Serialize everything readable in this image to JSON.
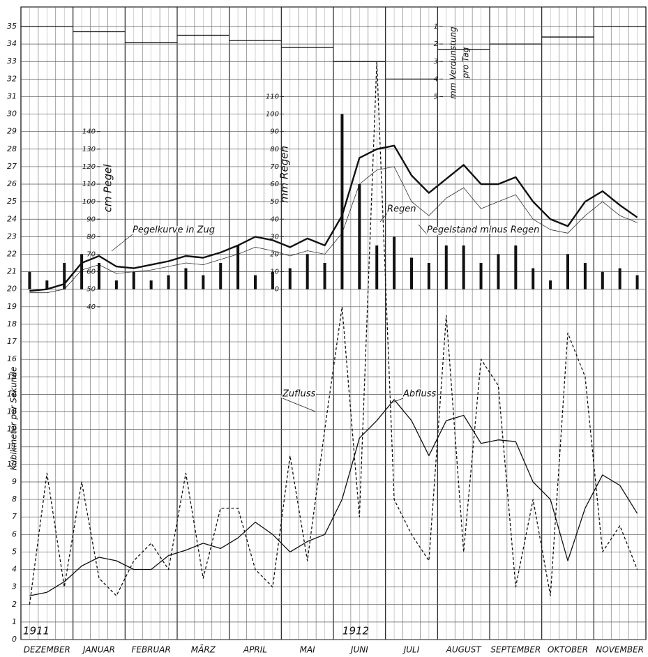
{
  "chart_data": {
    "type": "line",
    "y_label": "Kubikmeter per Sekunde",
    "y2_label": "cm Pegel",
    "y3_label": "mm Regen",
    "y4_label": [
      "mm Verdunstung",
      "pro Tag"
    ],
    "year_labels": [
      "1911",
      "1912"
    ],
    "categories": [
      null,
      "DEZEMBER",
      null,
      null,
      "JANUAR",
      null,
      null,
      "FEBRUAR",
      null,
      null,
      "MÄRZ",
      null,
      null,
      "APRIL",
      null,
      null,
      "MAI",
      null,
      null,
      "JUNI",
      null,
      null,
      "JULI",
      null,
      null,
      "AUGUST",
      null,
      null,
      "SEPTEMBER",
      null,
      null,
      "OKTOBER",
      null,
      null,
      "NOVEMBER",
      null
    ],
    "ylim": [
      0,
      35
    ],
    "yticks": [
      0,
      1,
      2,
      3,
      4,
      5,
      6,
      7,
      8,
      9,
      10,
      11,
      12,
      13,
      14,
      15,
      16,
      17,
      18,
      19,
      20,
      21,
      22,
      23,
      24,
      25,
      26,
      27,
      28,
      29,
      30,
      31,
      32,
      33,
      34,
      35
    ],
    "y2lim": [
      -150,
      200
    ],
    "y2ticks": [
      40,
      50,
      60,
      70,
      80,
      90,
      100,
      110,
      120,
      130,
      140
    ],
    "y3lim": [
      -200,
      150
    ],
    "y3ticks": [
      0,
      10,
      20,
      30,
      40,
      50,
      60,
      70,
      80,
      90,
      100,
      110
    ],
    "y4lim": [
      36,
      1
    ],
    "y4ticks": [
      1,
      2,
      3,
      4,
      5
    ],
    "grid": true,
    "series": [
      {
        "name": "Zufluss",
        "color": "#111111",
        "style": "dashed",
        "values": [
          2.0,
          9.5,
          3.0,
          9.0,
          3.5,
          2.5,
          4.5,
          5.5,
          4.0,
          9.5,
          3.5,
          7.5,
          7.5,
          4.0,
          3.0,
          10.5,
          4.5,
          12.0,
          19.0,
          7.0,
          33.0,
          8.0,
          6.0,
          4.5,
          18.5,
          5.0,
          16.0,
          14.5,
          3.0,
          8.0,
          2.5,
          17.5,
          15.0,
          5.0,
          6.5,
          4.0
        ]
      },
      {
        "name": "Abfluss",
        "color": "#111111",
        "style": "solid",
        "values": [
          2.5,
          2.7,
          3.3,
          4.2,
          4.7,
          4.5,
          4.0,
          4.0,
          4.8,
          5.1,
          5.5,
          5.2,
          5.8,
          6.7,
          6.0,
          5.0,
          5.6,
          6.0,
          8.0,
          11.5,
          12.5,
          13.7,
          12.5,
          10.5,
          12.5,
          12.8,
          11.2,
          11.4,
          11.3,
          9.0,
          8.0,
          4.5,
          7.5,
          9.4,
          8.8,
          7.2
        ]
      },
      {
        "name": "Pegelkurve in Zug",
        "color": "#111111",
        "style": "bold",
        "axis": "y2",
        "values": [
          49,
          50,
          53,
          65,
          69,
          63,
          62,
          64,
          66,
          69,
          68,
          71,
          75,
          80,
          78,
          74,
          79,
          75,
          92,
          125,
          130,
          132,
          115,
          105,
          113,
          121,
          110,
          110,
          114,
          100,
          90,
          86,
          100,
          106,
          98,
          91
        ]
      },
      {
        "name": "Pegelstand minus Regen",
        "color": "#333333",
        "style": "thin",
        "axis": "y2",
        "values": [
          48,
          48,
          50,
          61,
          64,
          59,
          60,
          61,
          63,
          65,
          64,
          67,
          70,
          74,
          72,
          69,
          72,
          70,
          82,
          110,
          118,
          120,
          100,
          92,
          102,
          108,
          96,
          100,
          104,
          90,
          84,
          82,
          92,
          100,
          92,
          88
        ]
      },
      {
        "name": "Regen",
        "color": "#111111",
        "style": "bars",
        "axis": "y3",
        "values": [
          10,
          5,
          15,
          20,
          15,
          5,
          10,
          5,
          8,
          12,
          8,
          15,
          25,
          8,
          10,
          12,
          20,
          15,
          100,
          60,
          25,
          30,
          18,
          15,
          25,
          25,
          15,
          20,
          25,
          12,
          5,
          20,
          15,
          10,
          12,
          8
        ]
      }
    ],
    "evaporation": {
      "color": "#111111",
      "axis": "y4",
      "values": [
        1.0,
        1.3,
        1.9,
        1.5,
        1.8,
        2.2,
        3.0,
        4.0,
        2.3,
        2.0,
        1.6,
        1.0
      ]
    }
  }
}
